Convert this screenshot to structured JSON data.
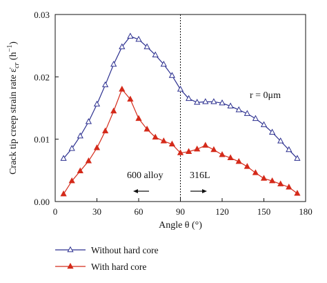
{
  "chart_data": {
    "type": "line",
    "xlabel": "Angle θ (°)",
    "ylabel": "Crack tip creep strain rate ε̇",
    "ylabel_sub": "cr",
    "ylabel_unit": " (h",
    "ylabel_sup": "−1",
    "ylabel_close": ")",
    "xlim": [
      0,
      180
    ],
    "ylim": [
      0,
      0.03
    ],
    "x_ticks": [
      0,
      30,
      60,
      90,
      120,
      150,
      180
    ],
    "y_ticks": [
      0.0,
      0.01,
      0.02,
      0.03
    ],
    "y_tick_labels": [
      "0.00",
      "0.01",
      "0.02",
      "0.03"
    ],
    "grid": false,
    "divider_x": 90,
    "annotations": {
      "r_label": "r = 0μm",
      "left_region": "600 alloy",
      "right_region": "316L"
    },
    "legend_position": "bottom-left, outside plot",
    "series": [
      {
        "name": "Without hard core",
        "marker": "open-triangle",
        "color": "#2b2f8f",
        "x": [
          6,
          12,
          18,
          24,
          30,
          36,
          42,
          48,
          54,
          60,
          66,
          72,
          78,
          84,
          90,
          96,
          102,
          108,
          114,
          120,
          126,
          132,
          138,
          144,
          150,
          156,
          162,
          168,
          174
        ],
        "y": [
          0.0069,
          0.0085,
          0.0105,
          0.0128,
          0.0156,
          0.0187,
          0.022,
          0.0248,
          0.0265,
          0.026,
          0.0248,
          0.0235,
          0.022,
          0.0202,
          0.018,
          0.0165,
          0.0159,
          0.016,
          0.016,
          0.0158,
          0.0153,
          0.0147,
          0.0141,
          0.0133,
          0.0123,
          0.0111,
          0.0097,
          0.0083,
          0.0069
        ]
      },
      {
        "name": "With hard core",
        "marker": "filled-triangle",
        "color": "#d42a1a",
        "x": [
          6,
          12,
          18,
          24,
          30,
          36,
          42,
          48,
          54,
          60,
          66,
          72,
          78,
          84,
          90,
          96,
          102,
          108,
          114,
          120,
          126,
          132,
          138,
          144,
          150,
          156,
          162,
          168,
          174
        ],
        "y": [
          0.0012,
          0.0033,
          0.0049,
          0.0065,
          0.0086,
          0.0113,
          0.0145,
          0.018,
          0.0164,
          0.0133,
          0.0116,
          0.0103,
          0.0097,
          0.0092,
          0.0078,
          0.008,
          0.0084,
          0.009,
          0.0083,
          0.0075,
          0.007,
          0.0064,
          0.0056,
          0.0046,
          0.0037,
          0.0033,
          0.0028,
          0.0023,
          0.0013
        ]
      }
    ]
  }
}
